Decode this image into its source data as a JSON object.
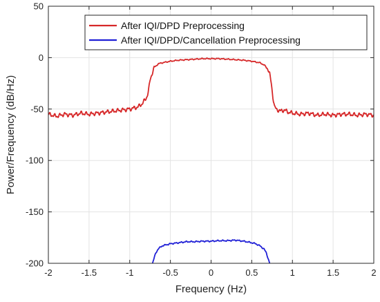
{
  "chart_data": {
    "type": "line",
    "title": "",
    "xlabel": "Frequency (Hz)",
    "ylabel": "Power/Frequency (dB/Hz)",
    "xlim": [
      -2,
      2
    ],
    "ylim": [
      -200,
      50
    ],
    "xticks": [
      -2,
      -1.5,
      -1,
      -0.5,
      0,
      0.5,
      1,
      1.5,
      2
    ],
    "xtick_labels": [
      "-2",
      "-1.5",
      "-1",
      "-0.5",
      "0",
      "0.5",
      "1",
      "1.5",
      "2"
    ],
    "yticks": [
      -200,
      -150,
      -100,
      -50,
      0,
      50
    ],
    "ytick_labels": [
      "-200",
      "-150",
      "-100",
      "-50",
      "0",
      "50"
    ],
    "grid": true,
    "legend_position": "top-right",
    "series": [
      {
        "name": "After IQI/DPD Preprocessing",
        "color": "#d62728",
        "x": [
          -2.0,
          -1.9,
          -1.8,
          -1.7,
          -1.6,
          -1.5,
          -1.4,
          -1.3,
          -1.2,
          -1.1,
          -1.0,
          -0.95,
          -0.9,
          -0.85,
          -0.8,
          -0.77,
          -0.75,
          -0.72,
          -0.7,
          -0.65,
          -0.6,
          -0.5,
          -0.4,
          -0.3,
          -0.2,
          -0.1,
          0.0,
          0.1,
          0.2,
          0.3,
          0.4,
          0.5,
          0.6,
          0.65,
          0.7,
          0.72,
          0.74,
          0.76,
          0.78,
          0.8,
          0.85,
          0.9,
          0.95,
          1.0,
          1.1,
          1.2,
          1.3,
          1.4,
          1.5,
          1.6,
          1.7,
          1.8,
          1.9,
          2.0
        ],
        "y": [
          -55,
          -57,
          -55,
          -56,
          -54,
          -55,
          -54,
          -53,
          -52,
          -51,
          -50,
          -49,
          -48,
          -45,
          -40,
          -33,
          -22,
          -14,
          -10,
          -6,
          -5,
          -3.5,
          -2.5,
          -2,
          -1.5,
          -1,
          -1,
          -1,
          -1.5,
          -2,
          -2.5,
          -3.5,
          -5,
          -7,
          -11,
          -16,
          -25,
          -38,
          -48,
          -50,
          -52,
          -51,
          -53,
          -54,
          -55,
          -54,
          -56,
          -55,
          -56,
          -55,
          -55,
          -56,
          -55,
          -56
        ]
      },
      {
        "name": "After IQI/DPD/Cancellation Preprocessing",
        "color": "#1f1fd6",
        "x": [
          -0.72,
          -0.7,
          -0.68,
          -0.65,
          -0.6,
          -0.55,
          -0.5,
          -0.4,
          -0.3,
          -0.2,
          -0.1,
          0.0,
          0.1,
          0.2,
          0.3,
          0.4,
          0.5,
          0.55,
          0.6,
          0.65,
          0.68,
          0.7,
          0.72
        ],
        "y": [
          -200,
          -195,
          -190,
          -186,
          -183,
          -182,
          -181,
          -180,
          -179,
          -179,
          -178.5,
          -178.5,
          -178,
          -178,
          -177.5,
          -178.5,
          -180,
          -181,
          -183,
          -186,
          -190,
          -195,
          -200
        ]
      }
    ]
  }
}
